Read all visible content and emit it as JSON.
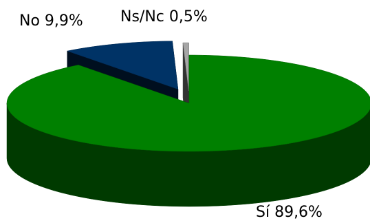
{
  "chart_data": {
    "type": "pie",
    "style": "3d-exploded",
    "slices": [
      {
        "label": "Sí",
        "value": 89.6,
        "text": "Sí 89,6%",
        "color": "#008000"
      },
      {
        "label": "No",
        "value": 9.9,
        "text": "No 9,9%",
        "color": "#003366"
      },
      {
        "label": "Ns/Nc",
        "value": 0.5,
        "text": "Ns/Nc 0,5%",
        "color": "#a6a6a6"
      }
    ],
    "legend": "none"
  }
}
